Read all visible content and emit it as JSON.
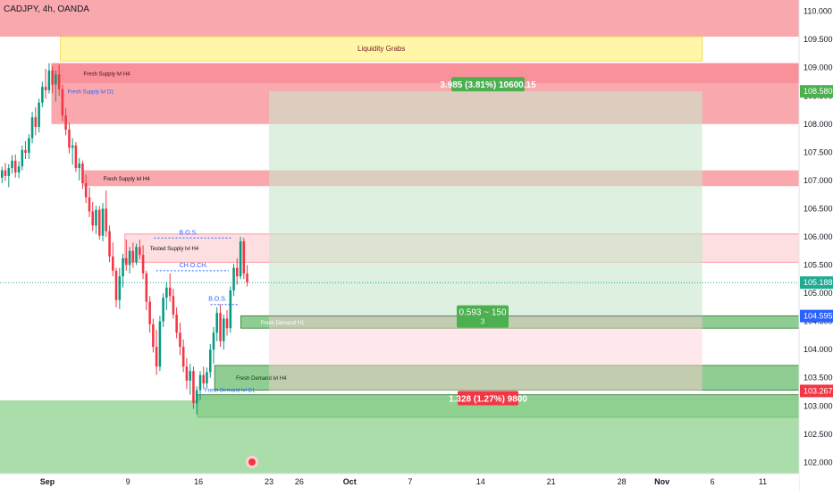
{
  "header": {
    "symbol_line": "CADJPY, 4h, OANDA"
  },
  "colors": {
    "supply": "#f23645",
    "demand": "#089981",
    "up_candle": "#089981",
    "down_candle": "#f23645",
    "liquidity": "#fff59d",
    "profit_label": "#4caf50",
    "loss_label": "#f23645",
    "current_price": "#22ab94",
    "blue_price": "#2962ff",
    "axis_text": "#131722",
    "bos_text": "#2962ff"
  },
  "chart_data": {
    "type": "candlestick",
    "title": "CADJPY, 4h, OANDA",
    "ylim": [
      101.8,
      110.2
    ],
    "y_ticks": [
      102.0,
      102.5,
      103.0,
      103.5,
      104.0,
      104.5,
      105.0,
      105.5,
      106.0,
      106.5,
      107.0,
      107.5,
      108.0,
      108.5,
      109.0,
      109.5,
      110.0
    ],
    "y_tick_labels": [
      "102.000",
      "102.500",
      "103.000",
      "103.500",
      "104.000",
      "104.500",
      "105.000",
      "105.500",
      "106.000",
      "106.500",
      "107.000",
      "107.500",
      "108.000",
      "108.500",
      "109.000",
      "109.500",
      "110.000"
    ],
    "x_ticks": [
      {
        "label": "Sep",
        "bold": true,
        "day": 0
      },
      {
        "label": "9",
        "bold": false,
        "day": 8
      },
      {
        "label": "16",
        "bold": false,
        "day": 15
      },
      {
        "label": "23",
        "bold": false,
        "day": 22
      },
      {
        "label": "26",
        "bold": false,
        "day": 25
      },
      {
        "label": "Oct",
        "bold": true,
        "day": 30
      },
      {
        "label": "7",
        "bold": false,
        "day": 36
      },
      {
        "label": "14",
        "bold": false,
        "day": 43
      },
      {
        "label": "21",
        "bold": false,
        "day": 50
      },
      {
        "label": "28",
        "bold": false,
        "day": 57
      },
      {
        "label": "Nov",
        "bold": true,
        "day": 61
      },
      {
        "label": "6",
        "bold": false,
        "day": 66
      },
      {
        "label": "11",
        "bold": false,
        "day": 71
      }
    ],
    "x_domain_days": [
      -4.7,
      74.6
    ],
    "price_labels": [
      {
        "value": "108.580",
        "price": 108.58,
        "color": "#4caf50"
      },
      {
        "value": "105.188",
        "price": 105.188,
        "color": "#22ab94"
      },
      {
        "value": "104.595",
        "price": 104.595,
        "color": "#2962ff"
      },
      {
        "value": "103.267",
        "price": 103.267,
        "color": "#f23645"
      }
    ],
    "current_price": 105.188,
    "zones": [
      {
        "name": "htf-supply",
        "kind": "supply",
        "day_from": -4.7,
        "day_to": 74.6,
        "top": 110.2,
        "bottom": 109.55,
        "label": ""
      },
      {
        "name": "liquidity-grabs",
        "kind": "liquidity",
        "day_from": 1.3,
        "day_to": 65.0,
        "top": 109.55,
        "bottom": 109.12,
        "label": "Liquidity Grabs"
      },
      {
        "name": "fresh-supply-h4",
        "kind": "supply-strong",
        "day_from": 0.4,
        "day_to": 74.6,
        "top": 109.08,
        "bottom": 108.72,
        "label": "Fresh Supply lvl H4"
      },
      {
        "name": "fresh-supply-d1",
        "kind": "supply",
        "day_from": 0.4,
        "day_to": 74.6,
        "top": 108.72,
        "bottom": 108.0,
        "label": "Fresh Supply lvl D1"
      },
      {
        "name": "fresh-supply-h4-lower",
        "kind": "supply",
        "day_from": 3.6,
        "day_to": 74.6,
        "top": 107.18,
        "bottom": 106.9,
        "label": "Fresh Supply lvl H4"
      },
      {
        "name": "tested-supply-h4",
        "kind": "supply-light",
        "day_from": 7.7,
        "day_to": 74.6,
        "top": 106.05,
        "bottom": 105.55,
        "label": "Tested Supply lvl H4"
      },
      {
        "name": "fresh-demand-h1",
        "kind": "demand-strong",
        "day_from": 19.2,
        "day_to": 74.6,
        "top": 104.6,
        "bottom": 104.38,
        "label": "Fresh Demand H1"
      },
      {
        "name": "fresh-demand-h4",
        "kind": "demand-strong",
        "day_from": 16.6,
        "day_to": 74.6,
        "top": 103.72,
        "bottom": 103.28,
        "label": "Fresh Demand lvl H4"
      },
      {
        "name": "fresh-demand-d1",
        "kind": "demand-strong",
        "day_from": 14.9,
        "day_to": 74.6,
        "top": 103.2,
        "bottom": 102.8,
        "label": "Fresh Demand lvl D1"
      },
      {
        "name": "htf-demand",
        "kind": "demand",
        "day_from": -4.7,
        "day_to": 74.6,
        "top": 103.1,
        "bottom": 101.8,
        "label": ""
      }
    ],
    "position": {
      "day_from": 22.0,
      "day_to": 65.0,
      "entry": 104.595,
      "target": 108.58,
      "stop": 103.267,
      "profit_label": "3.985 (3.81%) 10600.15",
      "loss_label": "1.328 (1.27%) 9800",
      "center_label": "0.593 ~ 150",
      "center_sub": "3"
    },
    "structure_marks": [
      {
        "label": "B.O.S.",
        "day_from": 10.6,
        "day_to": 18.4,
        "price": 105.98,
        "text_day": 14.0
      },
      {
        "label": "CH.O.CH.",
        "day_from": 10.8,
        "day_to": 18.0,
        "price": 105.4,
        "text_day": 14.5
      },
      {
        "label": "B.O.S.",
        "day_from": 16.2,
        "day_to": 19.0,
        "price": 104.8,
        "text_day": 16.9
      }
    ],
    "candles": [
      {
        "d": -4.5,
        "o": 107.05,
        "h": 107.24,
        "l": 106.95,
        "c": 107.18
      },
      {
        "d": -4.17,
        "o": 107.18,
        "h": 107.31,
        "l": 106.99,
        "c": 107.08
      },
      {
        "d": -3.83,
        "o": 107.08,
        "h": 107.29,
        "l": 106.88,
        "c": 107.22
      },
      {
        "d": -3.5,
        "o": 107.22,
        "h": 107.45,
        "l": 107.12,
        "c": 107.35
      },
      {
        "d": -3.17,
        "o": 107.35,
        "h": 107.46,
        "l": 107.05,
        "c": 107.14
      },
      {
        "d": -2.83,
        "o": 107.14,
        "h": 107.34,
        "l": 107.04,
        "c": 107.25
      },
      {
        "d": -2.5,
        "o": 107.25,
        "h": 107.62,
        "l": 107.18,
        "c": 107.54
      },
      {
        "d": -2.17,
        "o": 107.54,
        "h": 107.7,
        "l": 107.38,
        "c": 107.49
      },
      {
        "d": -1.83,
        "o": 107.49,
        "h": 107.82,
        "l": 107.38,
        "c": 107.75
      },
      {
        "d": -1.5,
        "o": 107.75,
        "h": 108.22,
        "l": 107.66,
        "c": 108.12
      },
      {
        "d": -1.17,
        "o": 108.12,
        "h": 108.3,
        "l": 107.8,
        "c": 107.95
      },
      {
        "d": -0.83,
        "o": 107.95,
        "h": 108.45,
        "l": 107.85,
        "c": 108.38
      },
      {
        "d": -0.5,
        "o": 108.38,
        "h": 108.75,
        "l": 108.3,
        "c": 108.66
      },
      {
        "d": -0.17,
        "o": 108.66,
        "h": 108.98,
        "l": 108.45,
        "c": 108.6
      },
      {
        "d": 0.17,
        "o": 108.6,
        "h": 109.08,
        "l": 108.54,
        "c": 108.95
      },
      {
        "d": 0.5,
        "o": 108.95,
        "h": 109.02,
        "l": 108.55,
        "c": 108.7
      },
      {
        "d": 0.83,
        "o": 108.7,
        "h": 108.95,
        "l": 108.4,
        "c": 108.88
      },
      {
        "d": 1.17,
        "o": 108.88,
        "h": 109.05,
        "l": 108.5,
        "c": 108.62
      },
      {
        "d": 1.5,
        "o": 108.62,
        "h": 108.7,
        "l": 108.05,
        "c": 108.15
      },
      {
        "d": 1.83,
        "o": 108.15,
        "h": 108.28,
        "l": 107.8,
        "c": 107.9
      },
      {
        "d": 2.17,
        "o": 107.9,
        "h": 108.02,
        "l": 107.48,
        "c": 107.58
      },
      {
        "d": 2.5,
        "o": 107.58,
        "h": 107.75,
        "l": 107.28,
        "c": 107.62
      },
      {
        "d": 2.83,
        "o": 107.62,
        "h": 107.68,
        "l": 107.15,
        "c": 107.22
      },
      {
        "d": 3.17,
        "o": 107.22,
        "h": 107.4,
        "l": 107.0,
        "c": 107.3
      },
      {
        "d": 3.5,
        "o": 107.3,
        "h": 107.35,
        "l": 106.85,
        "c": 106.95
      },
      {
        "d": 3.83,
        "o": 106.95,
        "h": 107.1,
        "l": 106.6,
        "c": 106.7
      },
      {
        "d": 4.17,
        "o": 106.7,
        "h": 106.88,
        "l": 106.35,
        "c": 106.45
      },
      {
        "d": 4.5,
        "o": 106.45,
        "h": 106.62,
        "l": 106.1,
        "c": 106.2
      },
      {
        "d": 4.83,
        "o": 106.2,
        "h": 106.55,
        "l": 106.05,
        "c": 106.48
      },
      {
        "d": 5.17,
        "o": 106.48,
        "h": 106.55,
        "l": 105.95,
        "c": 106.02
      },
      {
        "d": 5.5,
        "o": 106.02,
        "h": 106.6,
        "l": 105.92,
        "c": 106.5
      },
      {
        "d": 5.83,
        "o": 106.5,
        "h": 106.82,
        "l": 106.0,
        "c": 106.1
      },
      {
        "d": 6.17,
        "o": 106.1,
        "h": 106.2,
        "l": 105.55,
        "c": 105.65
      },
      {
        "d": 6.5,
        "o": 105.65,
        "h": 105.9,
        "l": 105.3,
        "c": 105.4
      },
      {
        "d": 6.83,
        "o": 105.4,
        "h": 105.45,
        "l": 104.75,
        "c": 104.88
      },
      {
        "d": 7.17,
        "o": 104.88,
        "h": 105.45,
        "l": 104.72,
        "c": 105.3
      },
      {
        "d": 7.5,
        "o": 105.3,
        "h": 105.7,
        "l": 105.1,
        "c": 105.62
      },
      {
        "d": 7.83,
        "o": 105.62,
        "h": 105.95,
        "l": 105.4,
        "c": 105.5
      },
      {
        "d": 8.17,
        "o": 105.5,
        "h": 105.82,
        "l": 105.35,
        "c": 105.75
      },
      {
        "d": 8.5,
        "o": 105.75,
        "h": 105.9,
        "l": 105.45,
        "c": 105.55
      },
      {
        "d": 8.83,
        "o": 105.55,
        "h": 105.88,
        "l": 105.5,
        "c": 105.82
      },
      {
        "d": 9.17,
        "o": 105.82,
        "h": 105.95,
        "l": 105.6,
        "c": 105.68
      },
      {
        "d": 9.5,
        "o": 105.68,
        "h": 105.85,
        "l": 105.25,
        "c": 105.35
      },
      {
        "d": 9.83,
        "o": 105.35,
        "h": 105.4,
        "l": 104.7,
        "c": 104.85
      },
      {
        "d": 10.17,
        "o": 104.85,
        "h": 104.95,
        "l": 104.3,
        "c": 104.45
      },
      {
        "d": 10.5,
        "o": 104.45,
        "h": 104.55,
        "l": 103.95,
        "c": 104.05
      },
      {
        "d": 10.83,
        "o": 104.05,
        "h": 104.35,
        "l": 103.55,
        "c": 103.7
      },
      {
        "d": 11.17,
        "o": 103.7,
        "h": 104.6,
        "l": 103.62,
        "c": 104.5
      },
      {
        "d": 11.5,
        "o": 104.5,
        "h": 105.0,
        "l": 104.4,
        "c": 104.92
      },
      {
        "d": 11.83,
        "o": 104.92,
        "h": 105.2,
        "l": 104.7,
        "c": 105.1
      },
      {
        "d": 12.17,
        "o": 105.1,
        "h": 105.35,
        "l": 104.85,
        "c": 104.95
      },
      {
        "d": 12.5,
        "o": 104.95,
        "h": 105.08,
        "l": 104.55,
        "c": 104.62
      },
      {
        "d": 12.83,
        "o": 104.62,
        "h": 104.75,
        "l": 104.2,
        "c": 104.3
      },
      {
        "d": 13.17,
        "o": 104.3,
        "h": 104.48,
        "l": 103.9,
        "c": 104.05
      },
      {
        "d": 13.5,
        "o": 104.05,
        "h": 104.18,
        "l": 103.6,
        "c": 103.7
      },
      {
        "d": 13.83,
        "o": 103.7,
        "h": 103.85,
        "l": 103.3,
        "c": 103.45
      },
      {
        "d": 14.17,
        "o": 103.45,
        "h": 103.75,
        "l": 103.2,
        "c": 103.62
      },
      {
        "d": 14.5,
        "o": 103.62,
        "h": 103.7,
        "l": 102.95,
        "c": 103.05
      },
      {
        "d": 14.83,
        "o": 103.05,
        "h": 103.35,
        "l": 102.85,
        "c": 103.28
      },
      {
        "d": 15.17,
        "o": 103.28,
        "h": 103.62,
        "l": 103.1,
        "c": 103.55
      },
      {
        "d": 15.5,
        "o": 103.55,
        "h": 103.7,
        "l": 103.3,
        "c": 103.4
      },
      {
        "d": 15.83,
        "o": 103.4,
        "h": 103.68,
        "l": 103.32,
        "c": 103.6
      },
      {
        "d": 16.17,
        "o": 103.6,
        "h": 104.1,
        "l": 103.5,
        "c": 104.0
      },
      {
        "d": 16.5,
        "o": 104.0,
        "h": 104.4,
        "l": 103.75,
        "c": 104.3
      },
      {
        "d": 16.83,
        "o": 104.3,
        "h": 104.75,
        "l": 104.15,
        "c": 104.65
      },
      {
        "d": 17.17,
        "o": 104.65,
        "h": 104.8,
        "l": 104.05,
        "c": 104.15
      },
      {
        "d": 17.5,
        "o": 104.15,
        "h": 104.62,
        "l": 104.0,
        "c": 104.55
      },
      {
        "d": 17.83,
        "o": 104.55,
        "h": 104.7,
        "l": 104.25,
        "c": 104.38
      },
      {
        "d": 18.17,
        "o": 104.38,
        "h": 105.12,
        "l": 104.3,
        "c": 105.05
      },
      {
        "d": 18.5,
        "o": 105.05,
        "h": 105.52,
        "l": 104.95,
        "c": 105.45
      },
      {
        "d": 18.83,
        "o": 105.45,
        "h": 105.62,
        "l": 105.15,
        "c": 105.3
      },
      {
        "d": 19.17,
        "o": 105.3,
        "h": 106.0,
        "l": 105.25,
        "c": 105.92
      },
      {
        "d": 19.5,
        "o": 105.92,
        "h": 105.98,
        "l": 105.25,
        "c": 105.35
      },
      {
        "d": 19.83,
        "o": 105.35,
        "h": 105.5,
        "l": 105.12,
        "c": 105.19
      }
    ]
  }
}
